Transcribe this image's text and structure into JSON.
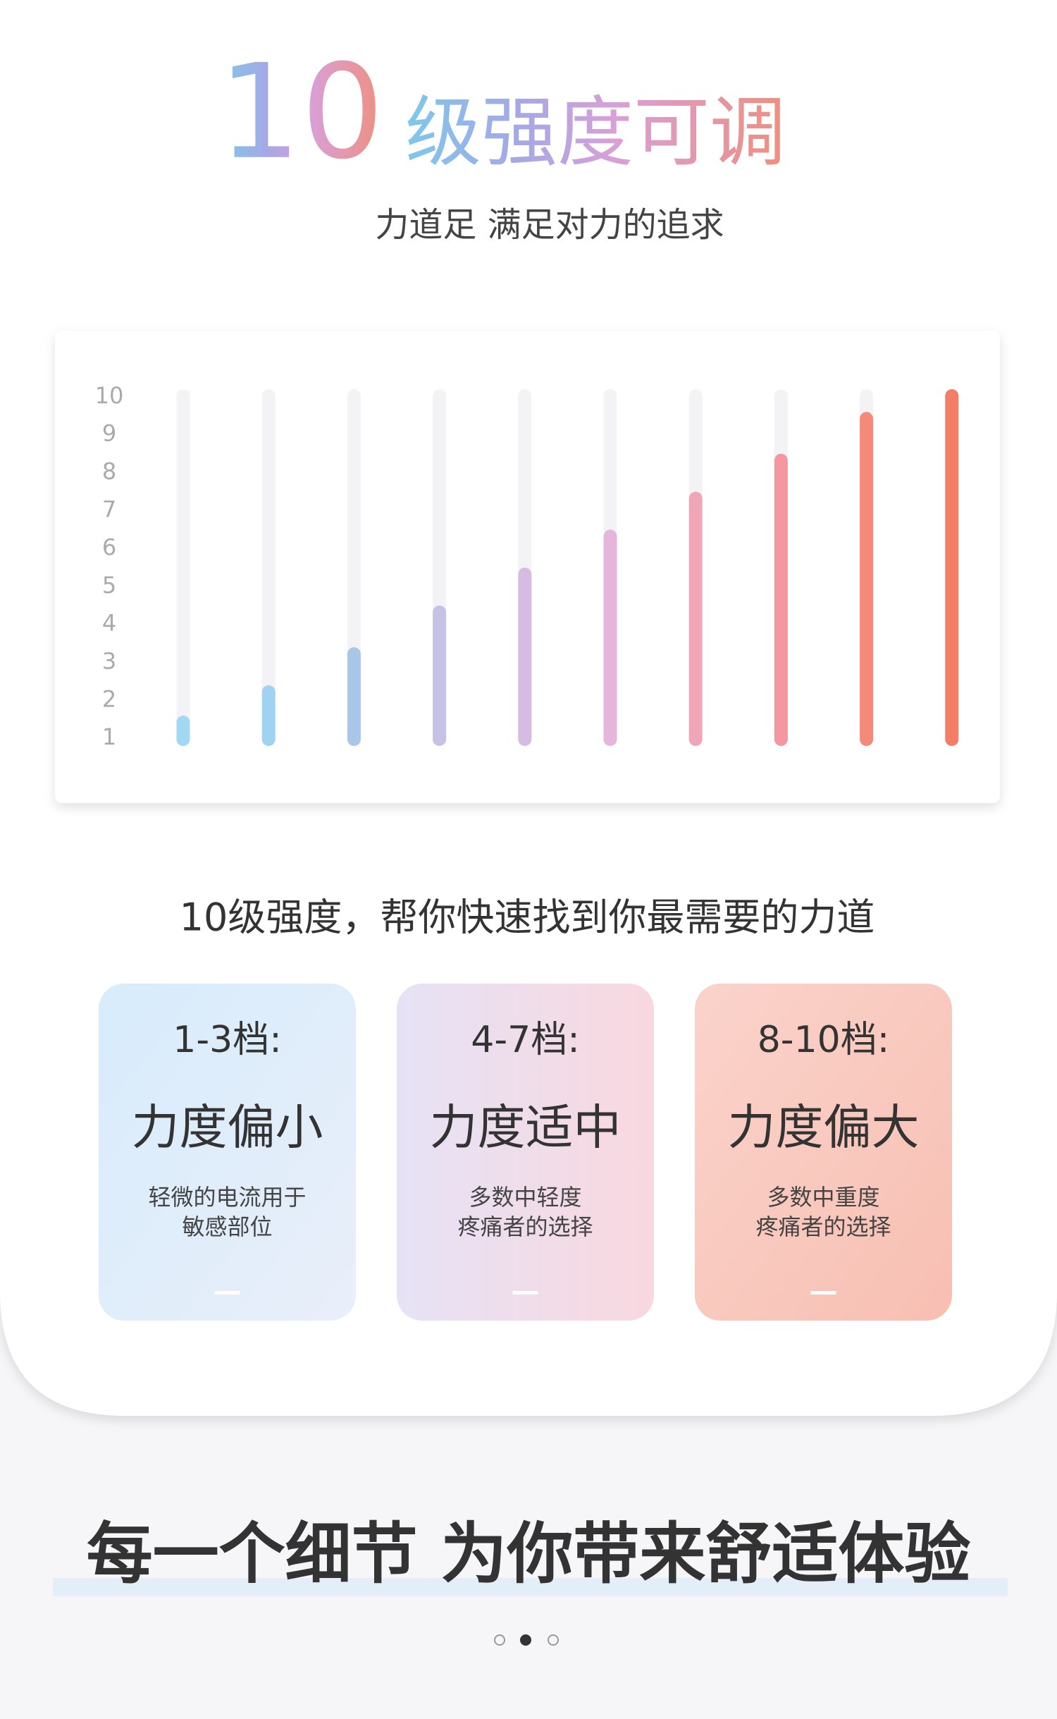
{
  "header": {
    "title_number": "10",
    "title_text": "级强度可调",
    "subtitle": "力道足 满足对力的追求"
  },
  "chart_data": {
    "type": "bar",
    "categories": [
      null,
      null,
      null,
      null,
      null,
      null,
      null,
      null,
      null,
      null
    ],
    "values": [
      1.6,
      2.4,
      3.4,
      4.5,
      5.5,
      6.5,
      7.5,
      8.5,
      9.6,
      10.2
    ],
    "colors": [
      "#a3d8f2",
      "#a0d3f1",
      "#a9c6e8",
      "#c5c2e6",
      "#d6bce2",
      "#e6b5dc",
      "#efa7b8",
      "#f398a0",
      "#f58a7b",
      "#f37e68"
    ],
    "track_color": "#f3f3f6",
    "ylim": [
      0.8,
      10.2
    ],
    "yticks": [
      1,
      2,
      3,
      4,
      5,
      6,
      7,
      8,
      9,
      10
    ]
  },
  "caption": "10级强度，帮你快速找到你最需要的力道",
  "cards": [
    {
      "range": "1-3档:",
      "title": "力度偏小",
      "lines": [
        "轻微的电流用于",
        "敏感部位"
      ]
    },
    {
      "range": "4-7档:",
      "title": "力度适中",
      "lines": [
        "多数中轻度",
        "疼痛者的选择"
      ]
    },
    {
      "range": "8-10档:",
      "title": "力度偏大",
      "lines": [
        "多数中重度",
        "疼痛者的选择"
      ]
    }
  ],
  "footer": {
    "heading": "每一个细节 为你带来舒适体验"
  }
}
